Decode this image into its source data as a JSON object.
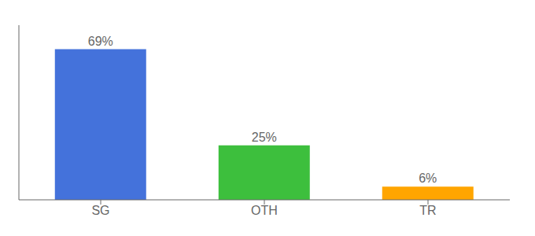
{
  "chart_data": {
    "type": "bar",
    "categories": [
      "SG",
      "OTH",
      "TR"
    ],
    "values": [
      69,
      25,
      6
    ],
    "value_labels": [
      "69%",
      "25%",
      "6%"
    ],
    "colors": [
      "#4472db",
      "#3dbf3d",
      "#ffa500"
    ],
    "ylim": [
      0,
      80
    ],
    "data_labels": true,
    "tick_labels": "x"
  }
}
